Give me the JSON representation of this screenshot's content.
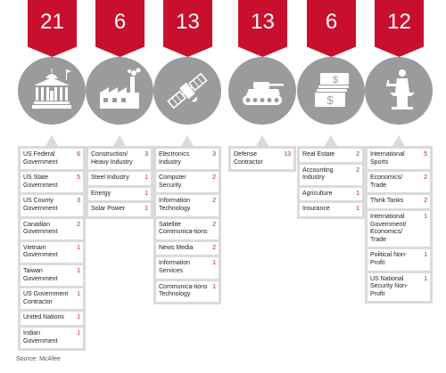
{
  "chart_data": {
    "type": "table",
    "columns": [
      {
        "total": "21",
        "icon": "capitol-building-icon",
        "items": [
          {
            "label": "US Federal Government",
            "value": 6
          },
          {
            "label": "US State Government",
            "value": 5
          },
          {
            "label": "US County Government",
            "value": 3
          },
          {
            "label": "Canadian Government",
            "value": 2
          },
          {
            "label": "Vietnam Government",
            "value": 1
          },
          {
            "label": "Taiwan Government",
            "value": 1
          },
          {
            "label": "US Government Contractor",
            "value": 1
          },
          {
            "label": "United Nations",
            "value": 1
          },
          {
            "label": "Indian Government",
            "value": 1
          }
        ]
      },
      {
        "total": "6",
        "icon": "factory-icon",
        "items": [
          {
            "label": "Construction/ Heavy Industry",
            "value": 3
          },
          {
            "label": "Steel Industry",
            "value": 1
          },
          {
            "label": "Energy",
            "value": 1
          },
          {
            "label": "Solar Power",
            "value": 1
          }
        ]
      },
      {
        "total": "13",
        "icon": "satellite-icon",
        "items": [
          {
            "label": "Electronics Industry",
            "value": 3
          },
          {
            "label": "Computer Security",
            "value": 2
          },
          {
            "label": "Information Technology",
            "value": 2
          },
          {
            "label": "Satellite Communica-tions",
            "value": 2
          },
          {
            "label": "News Media",
            "value": 2
          },
          {
            "label": "Information Services",
            "value": 1
          },
          {
            "label": "Communica-tions Technology",
            "value": 1
          }
        ]
      },
      {
        "total": "13",
        "icon": "tank-icon",
        "items": [
          {
            "label": "Defense Contractor",
            "value": 13
          }
        ]
      },
      {
        "total": "6",
        "icon": "money-icon",
        "items": [
          {
            "label": "Real Estate",
            "value": 2
          },
          {
            "label": "Accounting Industry",
            "value": 2
          },
          {
            "label": "Agriculture",
            "value": 1
          },
          {
            "label": "Insurance",
            "value": 1
          }
        ]
      },
      {
        "total": "12",
        "icon": "speaker-podium-icon",
        "items": [
          {
            "label": "International Sports",
            "value": 5
          },
          {
            "label": "Economics/ Trade",
            "value": 2
          },
          {
            "label": "Think Tanks",
            "value": 2
          },
          {
            "label": "International Government/ Economics/ Trade",
            "value": 1
          },
          {
            "label": "Political Non-Profit",
            "value": 1
          },
          {
            "label": "US National Security Non-Profit",
            "value": 1
          }
        ]
      }
    ]
  },
  "colors": {
    "accent": "#c8102e",
    "circle": "#9a9b9d",
    "panel": "#d9dadb"
  },
  "source": "Source: McAfee"
}
